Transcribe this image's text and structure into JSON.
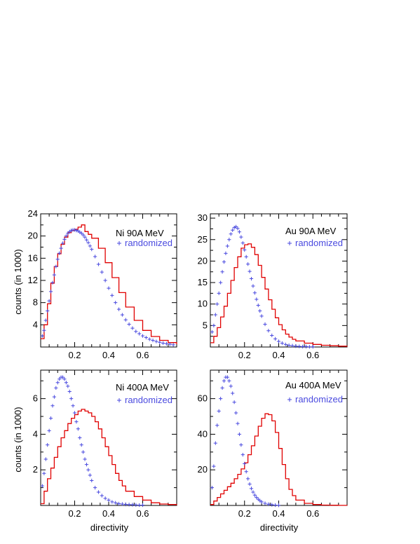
{
  "figure": {
    "ylabel": "counts (in 1000)",
    "xlabel": "directivity",
    "legend_randomized": "randomized",
    "colors": {
      "measured": "#e00000",
      "randomized": "#4a4adf",
      "axis": "#000000"
    }
  },
  "chart_data": [
    {
      "type": "line",
      "title": "Ni 90A MeV",
      "xlim": [
        0,
        0.8
      ],
      "ylim": [
        0,
        24
      ],
      "xticks": [
        0.2,
        0.4,
        0.6
      ],
      "xtick_labels": [
        "0.2",
        "0.4",
        "0.6"
      ],
      "yticks": [
        4,
        8,
        12,
        16,
        20,
        24
      ],
      "ytick_labels": [
        "4",
        "8",
        "12",
        "16",
        "20",
        "24"
      ],
      "ylabel": "counts (in 1000)",
      "xlabel": "",
      "grid": false,
      "legend": "top-right",
      "series": [
        {
          "name": "Ni 90A MeV",
          "style": "step",
          "x": [
            0.0,
            0.02,
            0.04,
            0.06,
            0.08,
            0.1,
            0.12,
            0.14,
            0.16,
            0.18,
            0.2,
            0.22,
            0.24,
            0.26,
            0.28,
            0.3,
            0.34,
            0.38,
            0.42,
            0.46,
            0.5,
            0.55,
            0.6,
            0.65,
            0.7,
            0.75,
            0.8
          ],
          "y": [
            1.5,
            4.0,
            7.8,
            11.5,
            14.5,
            16.8,
            18.5,
            19.8,
            20.6,
            21.0,
            21.2,
            21.6,
            22.0,
            20.8,
            20.3,
            19.6,
            17.8,
            15.2,
            12.5,
            9.8,
            7.2,
            4.8,
            3.0,
            1.9,
            1.2,
            0.8,
            0.5
          ]
        },
        {
          "name": "randomized",
          "style": "markers",
          "x": [
            0.01,
            0.02,
            0.03,
            0.04,
            0.05,
            0.06,
            0.07,
            0.08,
            0.09,
            0.1,
            0.11,
            0.12,
            0.13,
            0.14,
            0.15,
            0.16,
            0.17,
            0.18,
            0.19,
            0.2,
            0.21,
            0.22,
            0.23,
            0.24,
            0.25,
            0.26,
            0.27,
            0.28,
            0.29,
            0.3,
            0.32,
            0.34,
            0.36,
            0.38,
            0.4,
            0.42,
            0.44,
            0.46,
            0.48,
            0.5,
            0.52,
            0.54,
            0.56,
            0.58,
            0.6,
            0.62,
            0.64,
            0.66,
            0.68,
            0.7,
            0.72,
            0.74,
            0.76,
            0.78
          ],
          "y": [
            2.0,
            3.0,
            4.8,
            6.5,
            8.3,
            10.0,
            11.6,
            13.0,
            14.5,
            15.8,
            16.9,
            17.8,
            18.7,
            19.4,
            20.0,
            20.5,
            20.8,
            21.0,
            21.1,
            21.1,
            21.0,
            20.9,
            20.7,
            20.5,
            20.2,
            19.8,
            19.3,
            18.8,
            18.2,
            17.6,
            16.3,
            14.9,
            13.5,
            12.0,
            10.6,
            9.3,
            8.0,
            6.8,
            5.8,
            4.9,
            4.1,
            3.4,
            2.8,
            2.4,
            2.0,
            1.7,
            1.4,
            1.2,
            1.0,
            0.85,
            0.7,
            0.6,
            0.5,
            0.4
          ]
        }
      ]
    },
    {
      "type": "line",
      "title": "Au 90A MeV",
      "xlim": [
        0,
        0.8
      ],
      "ylim": [
        0,
        31
      ],
      "xticks": [
        0.2,
        0.4,
        0.6
      ],
      "xtick_labels": [
        "0.2",
        "0.4",
        "0.6"
      ],
      "yticks": [
        5,
        10,
        15,
        20,
        25,
        30
      ],
      "ytick_labels": [
        "5",
        "10",
        "15",
        "20",
        "25",
        "30"
      ],
      "ylabel": "",
      "xlabel": "",
      "grid": false,
      "legend": "top-right",
      "series": [
        {
          "name": "Au 90A MeV",
          "style": "step",
          "x": [
            0.0,
            0.02,
            0.04,
            0.06,
            0.08,
            0.1,
            0.12,
            0.14,
            0.16,
            0.18,
            0.2,
            0.22,
            0.24,
            0.26,
            0.28,
            0.3,
            0.32,
            0.34,
            0.36,
            0.38,
            0.4,
            0.42,
            0.44,
            0.46,
            0.48,
            0.5,
            0.55,
            0.6,
            0.65,
            0.7,
            0.75,
            0.8
          ],
          "y": [
            1.0,
            2.5,
            4.5,
            7.0,
            9.5,
            12.5,
            15.5,
            18.5,
            21.0,
            23.0,
            23.8,
            24.0,
            23.2,
            21.5,
            19.0,
            16.2,
            13.5,
            11.0,
            8.8,
            6.8,
            5.2,
            4.0,
            3.0,
            2.3,
            1.8,
            1.4,
            0.9,
            0.6,
            0.4,
            0.3,
            0.2,
            0.1
          ]
        },
        {
          "name": "randomized",
          "style": "markers",
          "x": [
            0.01,
            0.02,
            0.03,
            0.04,
            0.05,
            0.06,
            0.07,
            0.08,
            0.09,
            0.1,
            0.11,
            0.12,
            0.13,
            0.14,
            0.15,
            0.16,
            0.17,
            0.18,
            0.19,
            0.2,
            0.21,
            0.22,
            0.23,
            0.24,
            0.25,
            0.26,
            0.27,
            0.28,
            0.29,
            0.3,
            0.32,
            0.34,
            0.36,
            0.38,
            0.4,
            0.42,
            0.44,
            0.46,
            0.48,
            0.5,
            0.52,
            0.54,
            0.56,
            0.58,
            0.6
          ],
          "y": [
            3.5,
            5.0,
            7.5,
            10.0,
            12.5,
            15.0,
            17.5,
            19.8,
            21.8,
            23.5,
            25.0,
            26.3,
            27.2,
            27.8,
            28.0,
            27.6,
            26.8,
            25.6,
            24.2,
            22.6,
            21.0,
            19.3,
            17.6,
            15.9,
            14.2,
            12.6,
            11.1,
            9.7,
            8.4,
            7.2,
            5.3,
            3.8,
            2.7,
            1.9,
            1.3,
            0.9,
            0.6,
            0.4,
            0.3,
            0.2,
            0.15,
            0.1,
            0.1,
            0.05,
            0.05
          ]
        }
      ]
    },
    {
      "type": "line",
      "title": "Ni 400A MeV",
      "xlim": [
        0,
        0.8
      ],
      "ylim": [
        0,
        7.6
      ],
      "xticks": [
        0.2,
        0.4,
        0.6
      ],
      "xtick_labels": [
        "0.2",
        "0.4",
        "0.6"
      ],
      "yticks": [
        2,
        4,
        6
      ],
      "ytick_labels": [
        "2",
        "4",
        "6"
      ],
      "ylabel": "counts (in 1000)",
      "xlabel": "directivity",
      "grid": false,
      "legend": "top-right",
      "series": [
        {
          "name": "Ni 400A MeV",
          "style": "step",
          "x": [
            0.0,
            0.02,
            0.04,
            0.06,
            0.08,
            0.1,
            0.12,
            0.14,
            0.16,
            0.18,
            0.2,
            0.22,
            0.24,
            0.26,
            0.28,
            0.3,
            0.32,
            0.34,
            0.36,
            0.38,
            0.4,
            0.42,
            0.44,
            0.46,
            0.48,
            0.5,
            0.55,
            0.6,
            0.65,
            0.7,
            0.75,
            0.8
          ],
          "y": [
            0.1,
            0.8,
            1.5,
            2.1,
            2.7,
            3.3,
            3.8,
            4.2,
            4.6,
            4.9,
            5.1,
            5.3,
            5.4,
            5.3,
            5.2,
            5.0,
            4.7,
            4.3,
            3.8,
            3.3,
            2.8,
            2.3,
            1.8,
            1.4,
            1.1,
            0.8,
            0.5,
            0.3,
            0.15,
            0.08,
            0.05,
            0.02
          ]
        },
        {
          "name": "randomized",
          "style": "markers",
          "x": [
            0.01,
            0.02,
            0.03,
            0.04,
            0.05,
            0.06,
            0.07,
            0.08,
            0.09,
            0.1,
            0.11,
            0.12,
            0.13,
            0.14,
            0.15,
            0.16,
            0.17,
            0.18,
            0.19,
            0.2,
            0.21,
            0.22,
            0.23,
            0.24,
            0.25,
            0.26,
            0.27,
            0.28,
            0.29,
            0.3,
            0.32,
            0.34,
            0.36,
            0.38,
            0.4,
            0.42,
            0.44,
            0.46,
            0.48,
            0.5,
            0.52,
            0.54,
            0.56,
            0.58,
            0.6
          ],
          "y": [
            1.1,
            1.8,
            2.6,
            3.4,
            4.2,
            4.9,
            5.6,
            6.1,
            6.6,
            6.9,
            7.1,
            7.2,
            7.2,
            7.1,
            6.9,
            6.7,
            6.4,
            6.0,
            5.6,
            5.2,
            4.7,
            4.3,
            3.8,
            3.4,
            3.0,
            2.6,
            2.3,
            2.0,
            1.7,
            1.4,
            1.0,
            0.75,
            0.55,
            0.4,
            0.3,
            0.2,
            0.15,
            0.1,
            0.08,
            0.06,
            0.05,
            0.04,
            0.03,
            0.02,
            0.02
          ]
        }
      ]
    },
    {
      "type": "line",
      "title": "Au 400A MeV",
      "xlim": [
        0,
        0.8
      ],
      "ylim": [
        0,
        76
      ],
      "xticks": [
        0.2,
        0.4,
        0.6
      ],
      "xtick_labels": [
        "0.2",
        "0.4",
        "0.6"
      ],
      "yticks": [
        20,
        40,
        60
      ],
      "ytick_labels": [
        "20",
        "40",
        "60"
      ],
      "ylabel": "",
      "xlabel": "directivity",
      "grid": false,
      "legend": "top-right",
      "series": [
        {
          "name": "Au 400A MeV",
          "style": "step",
          "x": [
            0.0,
            0.02,
            0.04,
            0.06,
            0.08,
            0.1,
            0.12,
            0.14,
            0.16,
            0.18,
            0.2,
            0.22,
            0.24,
            0.26,
            0.28,
            0.3,
            0.32,
            0.34,
            0.36,
            0.38,
            0.4,
            0.42,
            0.44,
            0.46,
            0.48,
            0.5,
            0.55,
            0.6,
            0.65,
            0.7,
            0.75,
            0.8
          ],
          "y": [
            0.5,
            2.5,
            4.5,
            6.5,
            8.5,
            10.5,
            12.5,
            15.0,
            17.5,
            20.5,
            24.0,
            28.5,
            33.5,
            39.0,
            44.5,
            49.0,
            51.5,
            51.0,
            47.5,
            41.0,
            32.0,
            23.0,
            15.0,
            9.0,
            5.5,
            3.0,
            1.2,
            0.5,
            0.2,
            0.1,
            0.05,
            0.0
          ]
        },
        {
          "name": "randomized",
          "style": "markers",
          "x": [
            0.01,
            0.02,
            0.03,
            0.04,
            0.05,
            0.06,
            0.07,
            0.08,
            0.09,
            0.1,
            0.11,
            0.12,
            0.13,
            0.14,
            0.15,
            0.16,
            0.17,
            0.18,
            0.19,
            0.2,
            0.21,
            0.22,
            0.23,
            0.24,
            0.25,
            0.26,
            0.27,
            0.28,
            0.29,
            0.3,
            0.32,
            0.34,
            0.36,
            0.38,
            0.4
          ],
          "y": [
            10.0,
            22.0,
            35.0,
            45.0,
            53.0,
            60.0,
            66.0,
            70.0,
            72.0,
            72.0,
            70.0,
            67.0,
            63.0,
            58.0,
            52.0,
            46.0,
            40.0,
            34.0,
            28.5,
            23.5,
            19.0,
            15.0,
            12.0,
            9.5,
            7.5,
            5.8,
            4.5,
            3.5,
            2.7,
            2.0,
            1.2,
            0.7,
            0.4,
            0.2,
            0.1
          ]
        }
      ]
    }
  ]
}
